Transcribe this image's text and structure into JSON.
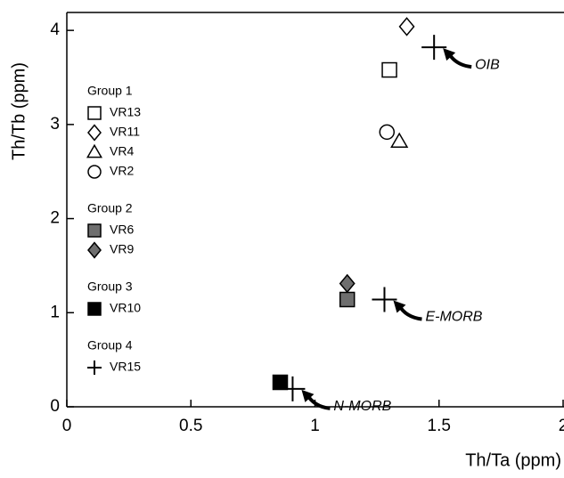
{
  "chart_data": {
    "type": "scatter",
    "xlabel": "Th/Ta (ppm)",
    "ylabel": "Th/Tb (ppm)",
    "xlim": [
      0,
      2
    ],
    "ylim": [
      0,
      4.2
    ],
    "xticks": [
      0,
      0.5,
      1,
      1.5,
      2
    ],
    "yticks": [
      0,
      1,
      2,
      3,
      4
    ],
    "groups": [
      {
        "name": "Group 1",
        "series": [
          {
            "name": "VR13",
            "marker": "square",
            "fill": "#ffffff",
            "color": "#000000",
            "x": [
              1.3
            ],
            "y": [
              3.58
            ]
          },
          {
            "name": "VR11",
            "marker": "diamond",
            "fill": "#ffffff",
            "color": "#000000",
            "x": [
              1.37
            ],
            "y": [
              4.04
            ]
          },
          {
            "name": "VR4",
            "marker": "triangle",
            "fill": "#ffffff",
            "color": "#000000",
            "x": [
              1.34
            ],
            "y": [
              2.82
            ]
          },
          {
            "name": "VR2",
            "marker": "circle",
            "fill": "#ffffff",
            "color": "#000000",
            "x": [
              1.29
            ],
            "y": [
              2.92
            ]
          }
        ]
      },
      {
        "name": "Group 2",
        "series": [
          {
            "name": "VR6",
            "marker": "square",
            "fill": "#6e6e6e",
            "color": "#000000",
            "x": [
              1.13
            ],
            "y": [
              1.14
            ]
          },
          {
            "name": "VR9",
            "marker": "diamond",
            "fill": "#6e6e6e",
            "color": "#000000",
            "x": [
              1.13
            ],
            "y": [
              1.31
            ]
          }
        ]
      },
      {
        "name": "Group 3",
        "series": [
          {
            "name": "VR10",
            "marker": "square",
            "fill": "#000000",
            "color": "#000000",
            "x": [
              0.86
            ],
            "y": [
              0.26
            ]
          }
        ]
      },
      {
        "name": "Group 4",
        "series": [
          {
            "name": "VR15",
            "marker": "plus",
            "fill": "#000000",
            "color": "#000000",
            "x": [
              1.48,
              1.28,
              0.91
            ],
            "y": [
              3.82,
              1.14,
              0.19
            ]
          }
        ]
      }
    ],
    "annotations": [
      "OIB",
      "E-MORB",
      "N-MORB"
    ]
  }
}
